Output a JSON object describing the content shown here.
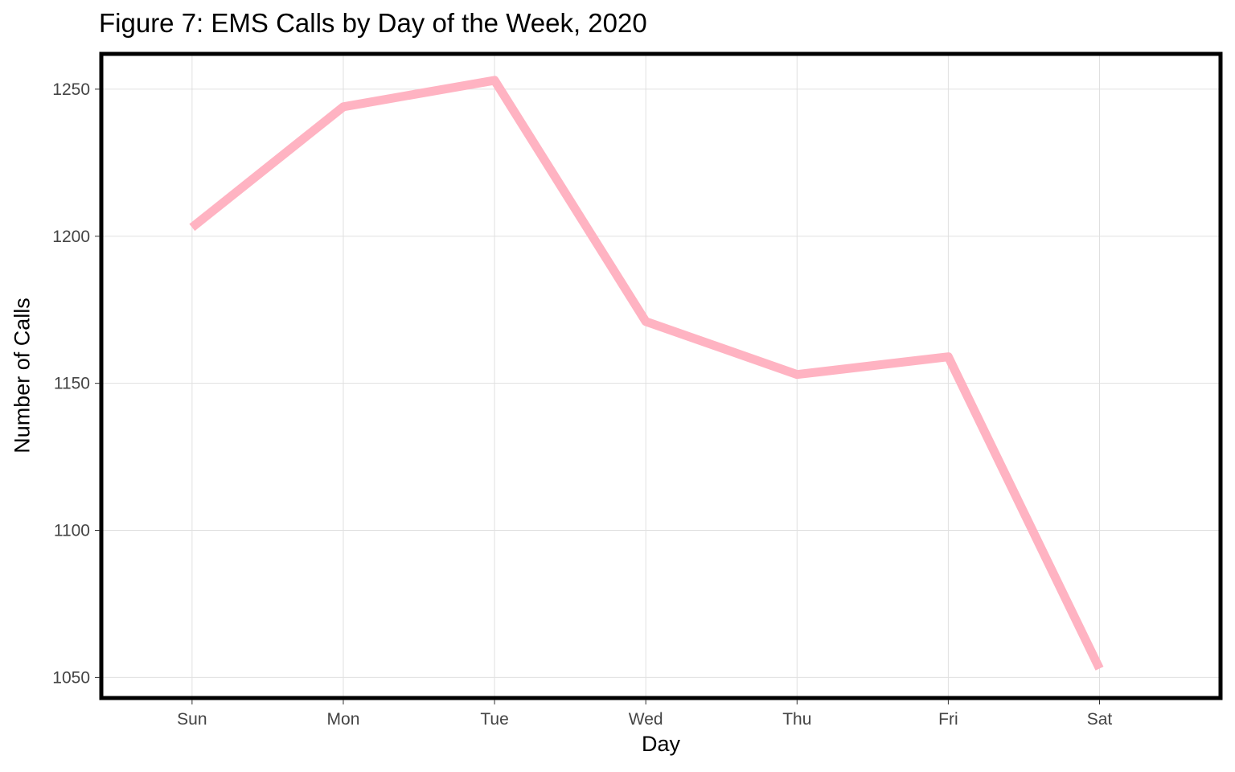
{
  "chart_data": {
    "type": "line",
    "title": "Figure 7: EMS Calls by Day of the Week, 2020",
    "xlabel": "Day",
    "ylabel": "Number of Calls",
    "categories": [
      "Sun",
      "Mon",
      "Tue",
      "Wed",
      "Thu",
      "Fri",
      "Sat"
    ],
    "series": [
      {
        "values": [
          1203,
          1244,
          1253,
          1171,
          1153,
          1159,
          1053
        ]
      }
    ],
    "ylim": [
      1043,
      1262
    ],
    "yticks": [
      1050,
      1100,
      1150,
      1200,
      1250
    ],
    "grid": true,
    "legend": "none",
    "line_color": "#FFB3C2",
    "grid_color": "#E0E0E0",
    "frame_color": "#000000"
  }
}
